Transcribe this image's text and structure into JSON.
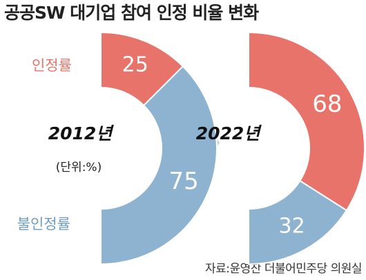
{
  "title": "공공SW 대기업 참여 인정 비율 변화",
  "source": "자료:윤영찬 더불어민주당 의원실",
  "chart_data": [
    {
      "type": "half-donut",
      "center_label": "2012년",
      "unit_label": "(단위:%)",
      "categories": [
        "인정률",
        "불인정률"
      ],
      "values": [
        25,
        75
      ],
      "colors": [
        "#e8736a",
        "#8db3d1"
      ]
    },
    {
      "type": "half-donut",
      "center_label": "2022년",
      "values": [
        68,
        32
      ],
      "colors": [
        "#e8736a",
        "#8db3d1"
      ]
    }
  ]
}
